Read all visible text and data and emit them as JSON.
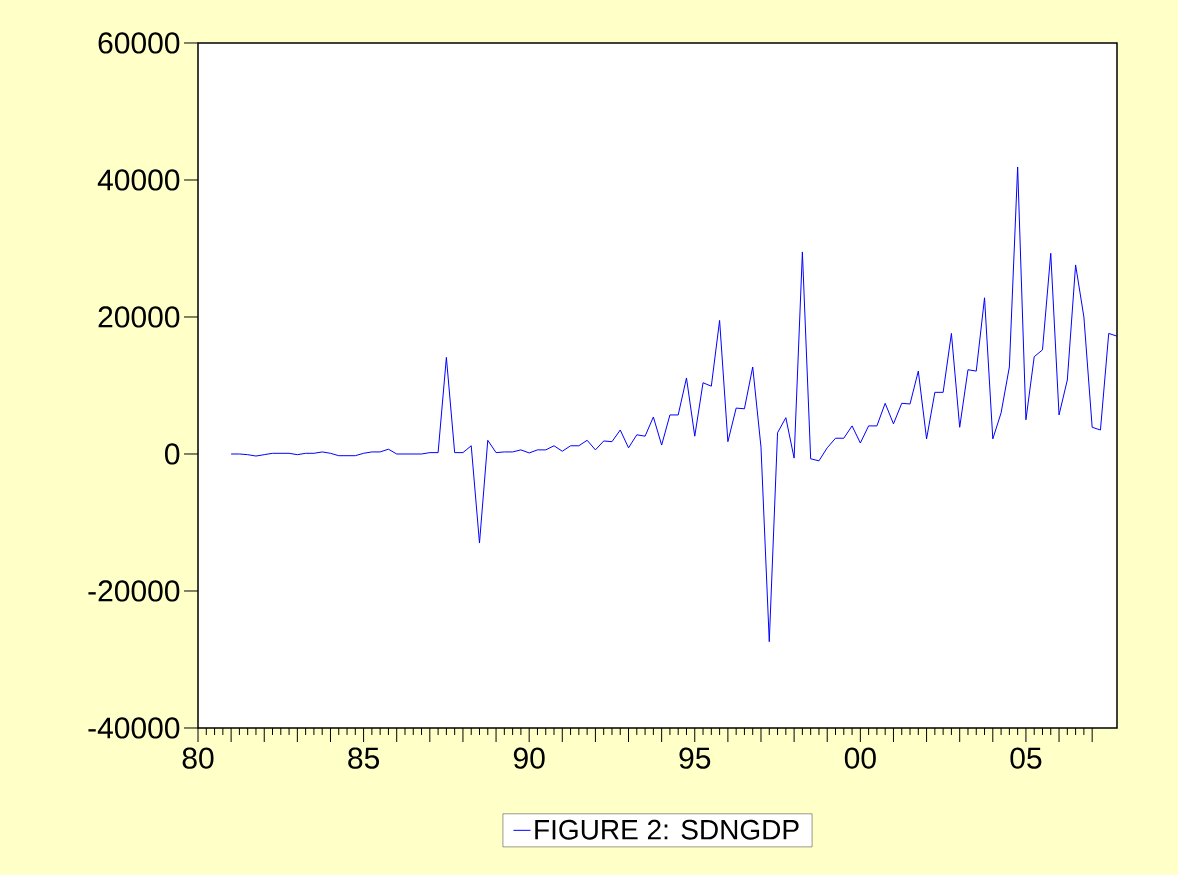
{
  "chart_data": {
    "type": "line",
    "xlim": [
      1980,
      2007.75
    ],
    "ylim": [
      -40000,
      60000
    ],
    "yticks": [
      -40000,
      -20000,
      0,
      20000,
      40000,
      60000
    ],
    "xticks": [
      {
        "value": 1980,
        "label": "80"
      },
      {
        "value": 1981,
        "label": null
      },
      {
        "value": 1982,
        "label": null
      },
      {
        "value": 1983,
        "label": null
      },
      {
        "value": 1984,
        "label": null
      },
      {
        "value": 1985,
        "label": "85"
      },
      {
        "value": 1986,
        "label": null
      },
      {
        "value": 1987,
        "label": null
      },
      {
        "value": 1988,
        "label": null
      },
      {
        "value": 1989,
        "label": null
      },
      {
        "value": 1990,
        "label": "90"
      },
      {
        "value": 1991,
        "label": null
      },
      {
        "value": 1992,
        "label": null
      },
      {
        "value": 1993,
        "label": null
      },
      {
        "value": 1994,
        "label": null
      },
      {
        "value": 1995,
        "label": "95"
      },
      {
        "value": 1996,
        "label": null
      },
      {
        "value": 1997,
        "label": null
      },
      {
        "value": 1998,
        "label": null
      },
      {
        "value": 1999,
        "label": null
      },
      {
        "value": 2000,
        "label": "00"
      },
      {
        "value": 2001,
        "label": null
      },
      {
        "value": 2002,
        "label": null
      },
      {
        "value": 2003,
        "label": null
      },
      {
        "value": 2004,
        "label": null
      },
      {
        "value": 2005,
        "label": "05"
      },
      {
        "value": 2006,
        "label": null
      },
      {
        "value": 2007,
        "label": null
      }
    ],
    "legend": "bottom",
    "series": [
      {
        "name": "FIGURE 2: SDNGDP",
        "color": "#0000ff",
        "x": [
          1981.0,
          1981.25,
          1981.5,
          1981.75,
          1982.0,
          1982.25,
          1982.5,
          1982.75,
          1983.0,
          1983.25,
          1983.5,
          1983.75,
          1984.0,
          1984.25,
          1984.5,
          1984.75,
          1985.0,
          1985.25,
          1985.5,
          1985.75,
          1986.0,
          1986.25,
          1986.5,
          1986.75,
          1987.0,
          1987.25,
          1987.5,
          1987.75,
          1988.0,
          1988.25,
          1988.5,
          1988.75,
          1989.0,
          1989.25,
          1989.5,
          1989.75,
          1990.0,
          1990.25,
          1990.5,
          1990.75,
          1991.0,
          1991.25,
          1991.5,
          1991.75,
          1992.0,
          1992.25,
          1992.5,
          1992.75,
          1993.0,
          1993.25,
          1993.5,
          1993.75,
          1994.0,
          1994.25,
          1994.5,
          1994.75,
          1995.0,
          1995.25,
          1995.5,
          1995.75,
          1996.0,
          1996.25,
          1996.5,
          1996.75,
          1997.0,
          1997.25,
          1997.5,
          1997.75,
          1998.0,
          1998.25,
          1998.5,
          1998.75,
          1999.0,
          1999.25,
          1999.5,
          1999.75,
          2000.0,
          2000.25,
          2000.5,
          2000.75,
          2001.0,
          2001.25,
          2001.5,
          2001.75,
          2002.0,
          2002.25,
          2002.5,
          2002.75,
          2003.0,
          2003.25,
          2003.5,
          2003.75,
          2004.0,
          2004.25,
          2004.5,
          2004.75,
          2005.0,
          2005.25,
          2005.5,
          2005.75,
          2006.0,
          2006.25,
          2006.5,
          2006.75,
          2007.0,
          2007.25,
          2007.5,
          2007.75
        ],
        "values": [
          0,
          0,
          -100,
          -300,
          -100,
          100,
          100,
          100,
          -100,
          100,
          100,
          300,
          100,
          -250,
          -250,
          -250,
          100,
          300,
          300,
          700,
          0,
          0,
          0,
          0,
          200,
          200,
          14100,
          200,
          200,
          1200,
          -13000,
          2000,
          200,
          300,
          300,
          600,
          150,
          600,
          600,
          1200,
          400,
          1200,
          1200,
          2000,
          600,
          1900,
          1800,
          3500,
          900,
          2800,
          2600,
          5400,
          1300,
          5700,
          5700,
          11100,
          2600,
          10400,
          9900,
          19500,
          1800,
          6700,
          6600,
          12700,
          1000,
          -27400,
          3100,
          5300,
          -600,
          29500,
          -700,
          -1000,
          900,
          2300,
          2300,
          4100,
          1600,
          4100,
          4100,
          7400,
          4400,
          7400,
          7300,
          12100,
          2200,
          9000,
          9000,
          17600,
          3900,
          12300,
          12100,
          22800,
          2200,
          6000,
          12700,
          41900,
          5000,
          14200,
          15200,
          29300,
          5700,
          10800,
          27600,
          20000,
          3900,
          3500,
          17600,
          17200
        ]
      }
    ]
  }
}
